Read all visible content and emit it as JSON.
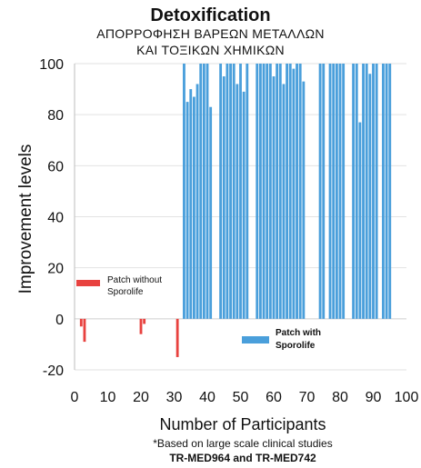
{
  "chart_data": {
    "type": "bar",
    "title": "Detoxification",
    "subtitle_lines": [
      "ΑΠΟΡΡΟΦΗΣΗ ΒΑΡΕΩΝ ΜΕΤΑΛΛΩΝ",
      "ΚΑΙ ΤΟΞΙΚΩΝ ΧΗΜΙΚΩΝ"
    ],
    "xlabel": "Number of Participants",
    "ylabel": "Improvement levels",
    "xlim": [
      0,
      100
    ],
    "ylim": [
      -20,
      100
    ],
    "x_ticks": [
      0,
      10,
      20,
      30,
      40,
      50,
      60,
      70,
      80,
      90,
      100
    ],
    "y_ticks": [
      -20,
      0,
      20,
      40,
      60,
      80,
      100
    ],
    "grid": "horizontal",
    "legend": {
      "placement": "inside"
    },
    "series": [
      {
        "name": "Patch without Sporolife",
        "color": "#e8423f",
        "points": [
          {
            "x": 2,
            "y": -3
          },
          {
            "x": 3,
            "y": -9
          },
          {
            "x": 20,
            "y": -6
          },
          {
            "x": 21,
            "y": -2
          },
          {
            "x": 31,
            "y": -15
          }
        ]
      },
      {
        "name": "Patch with Sporolife",
        "color": "#4a9fdb",
        "points": [
          {
            "x": 33,
            "y": 100
          },
          {
            "x": 34,
            "y": 85
          },
          {
            "x": 35,
            "y": 90
          },
          {
            "x": 36,
            "y": 87
          },
          {
            "x": 37,
            "y": 92
          },
          {
            "x": 38,
            "y": 100
          },
          {
            "x": 39,
            "y": 100
          },
          {
            "x": 40,
            "y": 100
          },
          {
            "x": 41,
            "y": 83
          },
          {
            "x": 44,
            "y": 100
          },
          {
            "x": 45,
            "y": 95
          },
          {
            "x": 46,
            "y": 100
          },
          {
            "x": 47,
            "y": 100
          },
          {
            "x": 48,
            "y": 100
          },
          {
            "x": 49,
            "y": 92
          },
          {
            "x": 50,
            "y": 100
          },
          {
            "x": 51,
            "y": 89
          },
          {
            "x": 52,
            "y": 100
          },
          {
            "x": 55,
            "y": 100
          },
          {
            "x": 56,
            "y": 100
          },
          {
            "x": 57,
            "y": 100
          },
          {
            "x": 58,
            "y": 100
          },
          {
            "x": 59,
            "y": 100
          },
          {
            "x": 60,
            "y": 95
          },
          {
            "x": 61,
            "y": 100
          },
          {
            "x": 62,
            "y": 100
          },
          {
            "x": 63,
            "y": 92
          },
          {
            "x": 64,
            "y": 100
          },
          {
            "x": 65,
            "y": 100
          },
          {
            "x": 66,
            "y": 98
          },
          {
            "x": 67,
            "y": 100
          },
          {
            "x": 68,
            "y": 100
          },
          {
            "x": 69,
            "y": 93
          },
          {
            "x": 74,
            "y": 100
          },
          {
            "x": 75,
            "y": 100
          },
          {
            "x": 77,
            "y": 100
          },
          {
            "x": 78,
            "y": 100
          },
          {
            "x": 79,
            "y": 100
          },
          {
            "x": 80,
            "y": 100
          },
          {
            "x": 81,
            "y": 100
          },
          {
            "x": 84,
            "y": 100
          },
          {
            "x": 85,
            "y": 100
          },
          {
            "x": 86,
            "y": 77
          },
          {
            "x": 87,
            "y": 100
          },
          {
            "x": 88,
            "y": 100
          },
          {
            "x": 89,
            "y": 96
          },
          {
            "x": 90,
            "y": 100
          },
          {
            "x": 91,
            "y": 100
          },
          {
            "x": 93,
            "y": 100
          },
          {
            "x": 94,
            "y": 100
          },
          {
            "x": 95,
            "y": 100
          }
        ]
      }
    ]
  },
  "footnote": {
    "line1": "*Based on large scale clinical studies",
    "line2": "TR-MED964 and TR-MED742"
  }
}
